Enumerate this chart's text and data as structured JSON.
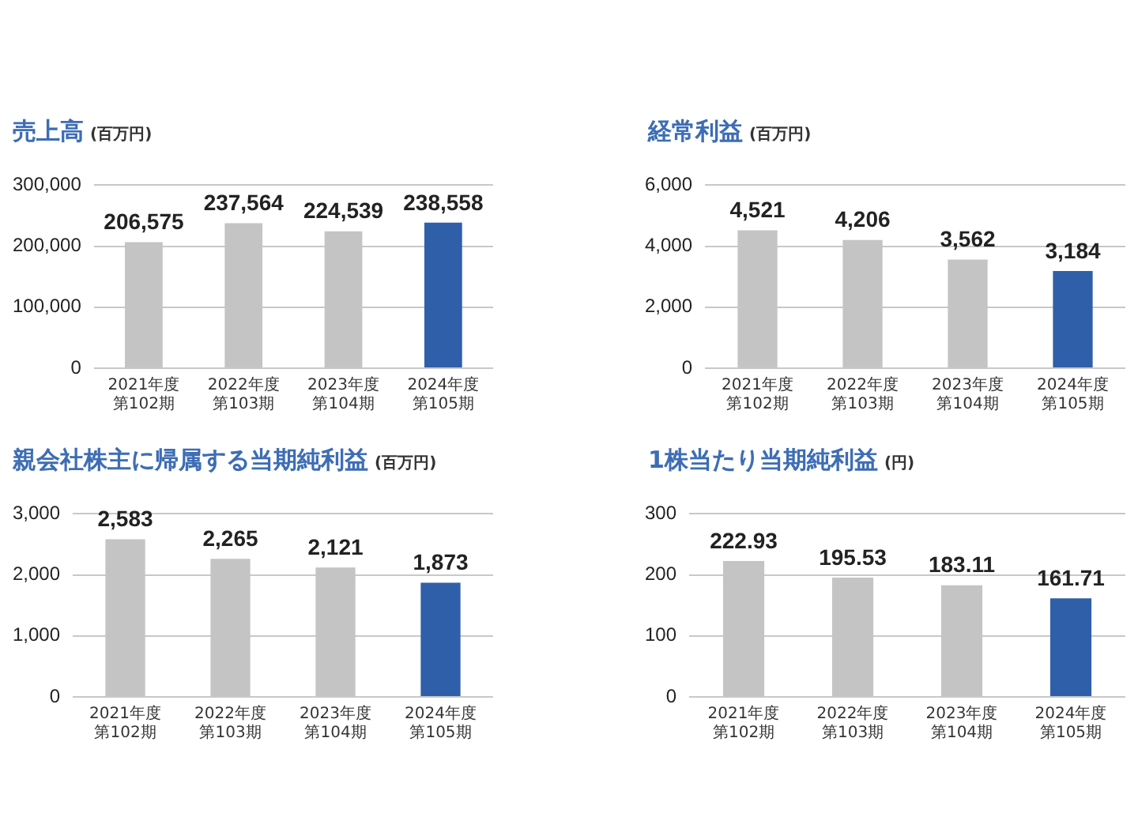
{
  "chart_data": [
    {
      "type": "bar",
      "title": "売上高",
      "subtitle": "(百万円)",
      "categories": [
        "2021年度第102期",
        "2022年度第103期",
        "2023年度第104期",
        "2024年度第105期"
      ],
      "values": [
        206575,
        237564,
        224539,
        238558
      ],
      "colors": [
        "#c4c4c4",
        "#c4c4c4",
        "#c4c4c4",
        "#2f5fa8"
      ],
      "ylim": [
        0,
        300000
      ],
      "yticks": [
        {
          "value": 0,
          "label": "0"
        },
        {
          "value": 100000,
          "label": "100,000"
        },
        {
          "value": 200000,
          "label": "200,000"
        },
        {
          "value": 300000,
          "label": "300,000"
        }
      ],
      "value_labels": [
        "206,575",
        "237,564",
        "224,539",
        "238,558"
      ],
      "grid": "y",
      "legend": false
    },
    {
      "type": "bar",
      "title": "経常利益",
      "subtitle": "(百万円)",
      "categories": [
        "2021年度第102期",
        "2022年度第103期",
        "2023年度第104期",
        "2024年度第105期"
      ],
      "values": [
        4521,
        4206,
        3562,
        3184
      ],
      "colors": [
        "#c4c4c4",
        "#c4c4c4",
        "#c4c4c4",
        "#2f5fa8"
      ],
      "ylim": [
        0,
        6000
      ],
      "yticks": [
        {
          "value": 0,
          "label": "0"
        },
        {
          "value": 2000,
          "label": "2,000"
        },
        {
          "value": 4000,
          "label": "4,000"
        },
        {
          "value": 6000,
          "label": "6,000"
        }
      ],
      "value_labels": [
        "4,521",
        "4,206",
        "3,562",
        "3,184"
      ],
      "grid": "y",
      "legend": false
    },
    {
      "type": "bar",
      "title": "親会社株主に帰属する当期純利益",
      "subtitle": "(百万円)",
      "categories": [
        "2021年度第102期",
        "2022年度第103期",
        "2023年度第104期",
        "2024年度第105期"
      ],
      "values": [
        2583,
        2265,
        2121,
        1873
      ],
      "colors": [
        "#c4c4c4",
        "#c4c4c4",
        "#c4c4c4",
        "#2f5fa8"
      ],
      "ylim": [
        0,
        3000
      ],
      "yticks": [
        {
          "value": 0,
          "label": "0"
        },
        {
          "value": 1000,
          "label": "1,000"
        },
        {
          "value": 2000,
          "label": "2,000"
        },
        {
          "value": 3000,
          "label": "3,000"
        }
      ],
      "value_labels": [
        "2,583",
        "2,265",
        "2,121",
        "1,873"
      ],
      "grid": "y",
      "legend": false
    },
    {
      "type": "bar",
      "title": "1株当たり当期純利益",
      "subtitle": "(円)",
      "categories": [
        "2021年度第102期",
        "2022年度第103期",
        "2023年度第104期",
        "2024年度第105期"
      ],
      "values": [
        222.93,
        195.53,
        183.11,
        161.71
      ],
      "colors": [
        "#c4c4c4",
        "#c4c4c4",
        "#c4c4c4",
        "#2f5fa8"
      ],
      "ylim": [
        0,
        300
      ],
      "yticks": [
        0,
        100,
        200,
        300
      ],
      "data_labels": true,
      "grid": "y",
      "legend": false
    }
  ]
}
